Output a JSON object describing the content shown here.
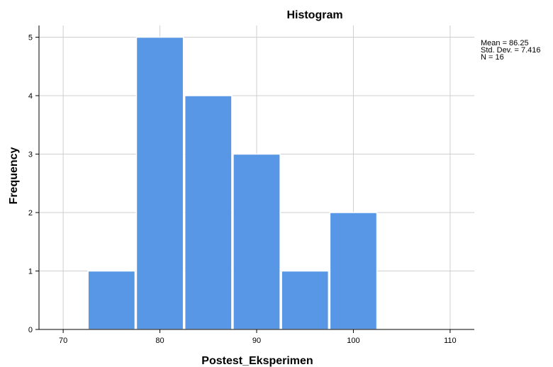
{
  "chart_data": {
    "type": "histogram",
    "title": "Histogram",
    "xlabel": "Postest_Eksperimen",
    "ylabel": "Frequency",
    "xlim": [
      67.5,
      112.5
    ],
    "ylim": [
      0,
      5.2
    ],
    "x_ticks": [
      70,
      80,
      90,
      100,
      110
    ],
    "y_ticks": [
      0,
      1,
      2,
      3,
      4,
      5
    ],
    "bins": [
      {
        "start": 72.5,
        "end": 77.5,
        "count": 1
      },
      {
        "start": 77.5,
        "end": 82.5,
        "count": 5
      },
      {
        "start": 82.5,
        "end": 87.5,
        "count": 4
      },
      {
        "start": 87.5,
        "end": 92.5,
        "count": 3
      },
      {
        "start": 92.5,
        "end": 97.5,
        "count": 1
      },
      {
        "start": 97.5,
        "end": 102.5,
        "count": 2
      }
    ],
    "bar_color": "#5897E6",
    "grid": true,
    "stats": {
      "mean_label": "Mean = 86.25",
      "sd_label": "Std. Dev. = 7.416",
      "n_label": "N = 16"
    }
  }
}
